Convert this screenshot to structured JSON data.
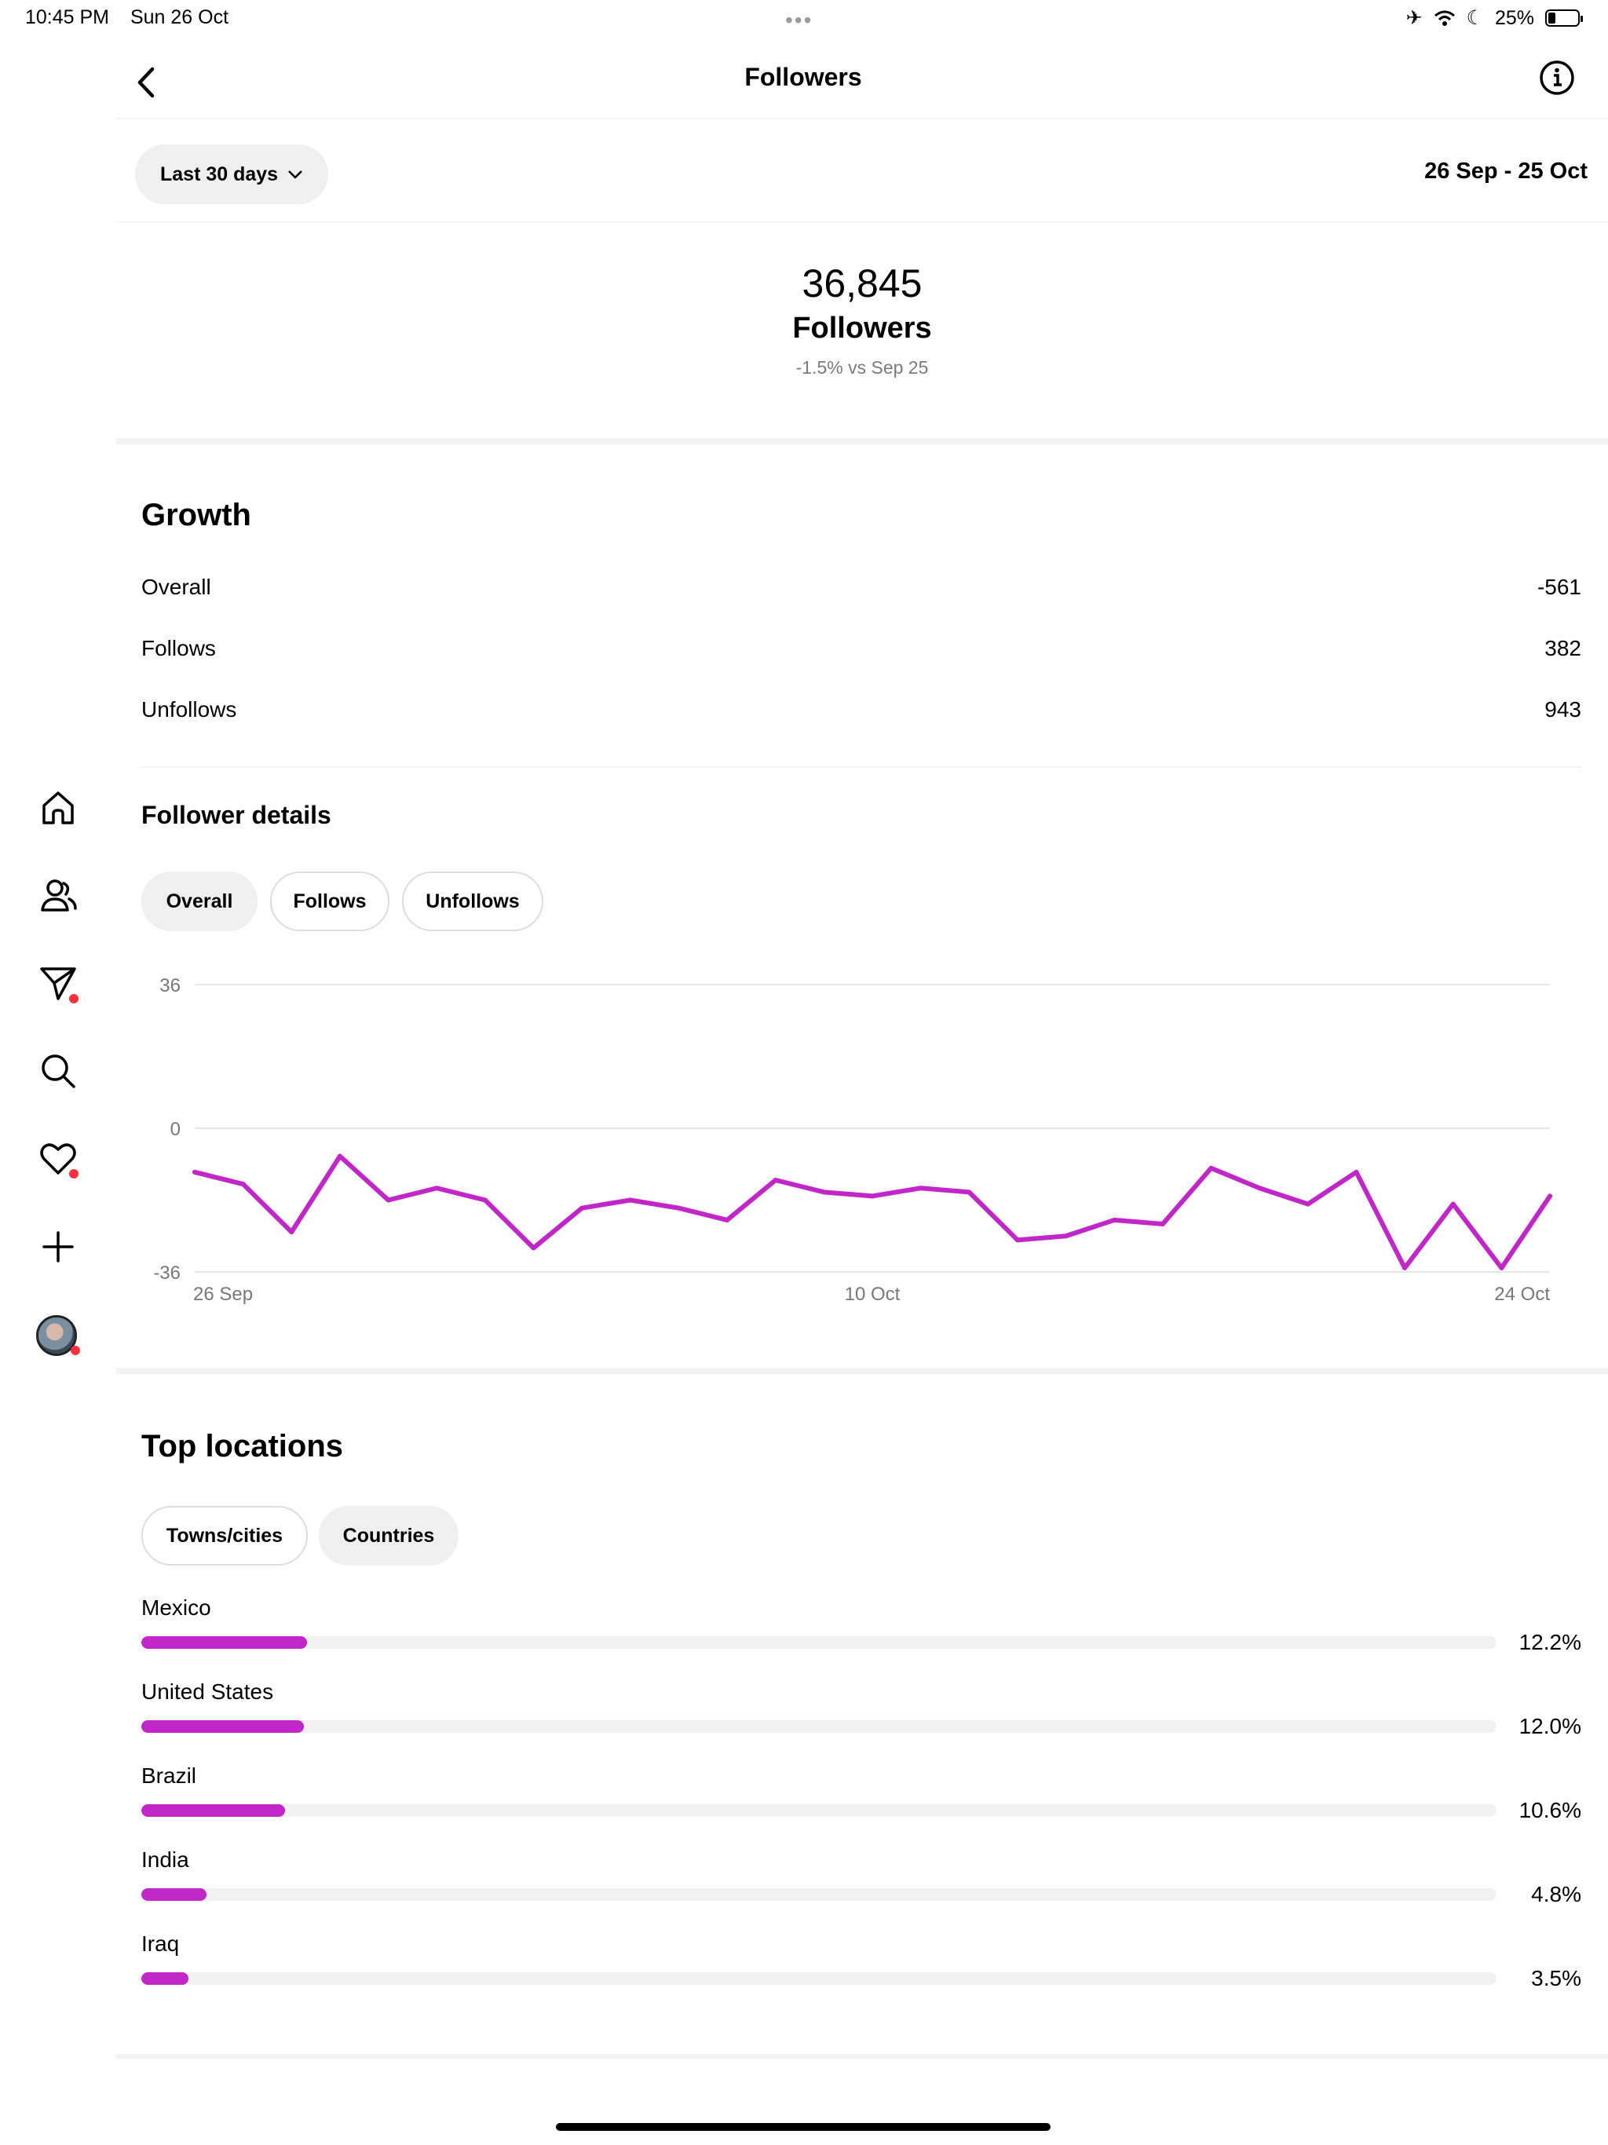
{
  "status_bar": {
    "time": "10:45 PM",
    "date": "Sun 26 Oct",
    "battery": "25%",
    "battery_level": 0.25
  },
  "header": {
    "title": "Followers"
  },
  "filter": {
    "range_label": "Last 30 days",
    "date_range": "26 Sep - 25 Oct"
  },
  "summary": {
    "total": "36,845",
    "label": "Followers",
    "change": "-1.5% vs Sep 25"
  },
  "growth": {
    "title": "Growth",
    "rows": [
      {
        "label": "Overall",
        "value": "-561"
      },
      {
        "label": "Follows",
        "value": "382"
      },
      {
        "label": "Unfollows",
        "value": "943"
      }
    ]
  },
  "follower_details": {
    "title": "Follower details",
    "tabs": [
      {
        "label": "Overall",
        "active": true
      },
      {
        "label": "Follows",
        "active": false
      },
      {
        "label": "Unfollows",
        "active": false
      }
    ]
  },
  "chart_data": {
    "type": "line",
    "title": "",
    "xlabel": "",
    "ylabel": "",
    "y_ticks": [
      "36",
      "0",
      "-36"
    ],
    "x_ticks": [
      "26 Sep",
      "10 Oct",
      "24 Oct"
    ],
    "ylim": [
      -36,
      36
    ],
    "grid": true,
    "color": "#c026c8",
    "x": [
      "26 Sep",
      "27 Sep",
      "28 Sep",
      "29 Sep",
      "30 Sep",
      "1 Oct",
      "2 Oct",
      "3 Oct",
      "4 Oct",
      "5 Oct",
      "6 Oct",
      "7 Oct",
      "8 Oct",
      "9 Oct",
      "10 Oct",
      "11 Oct",
      "12 Oct",
      "13 Oct",
      "14 Oct",
      "15 Oct",
      "16 Oct",
      "17 Oct",
      "18 Oct",
      "19 Oct",
      "20 Oct",
      "21 Oct",
      "22 Oct",
      "23 Oct",
      "24 Oct"
    ],
    "series": [
      {
        "values": [
          -11,
          -14,
          -26,
          -7,
          -18,
          -15,
          -18,
          -30,
          -20,
          -18,
          -20,
          -23,
          -13,
          -16,
          -17,
          -15,
          -16,
          -28,
          -27,
          -23,
          -24,
          -10,
          -15,
          -19,
          -11,
          -35,
          -19,
          -35,
          -17
        ]
      }
    ]
  },
  "top_locations": {
    "title": "Top locations",
    "tabs": [
      {
        "label": "Towns/cities",
        "active": false
      },
      {
        "label": "Countries",
        "active": true
      }
    ],
    "items": [
      {
        "name": "Mexico",
        "percent": "12.2%",
        "fraction": 0.122
      },
      {
        "name": "United States",
        "percent": "12.0%",
        "fraction": 0.12
      },
      {
        "name": "Brazil",
        "percent": "10.6%",
        "fraction": 0.106
      },
      {
        "name": "India",
        "percent": "4.8%",
        "fraction": 0.048
      },
      {
        "name": "Iraq",
        "percent": "3.5%",
        "fraction": 0.035
      }
    ]
  },
  "sidebar": {
    "icons": [
      "home-icon",
      "people-icon",
      "send-icon",
      "search-icon",
      "heart-icon",
      "plus-icon",
      "avatar"
    ]
  }
}
